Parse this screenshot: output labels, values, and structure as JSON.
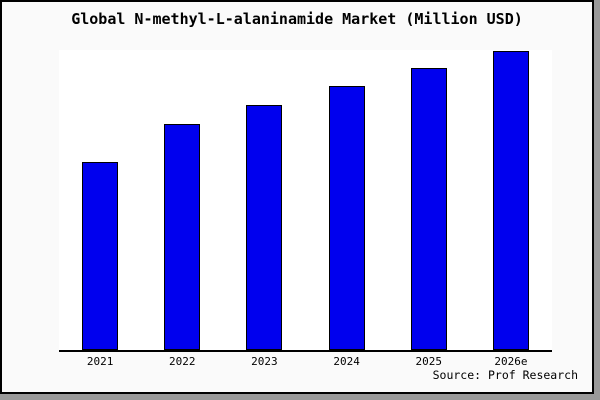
{
  "chart_data": {
    "type": "bar",
    "title": "Global N-methyl-L-alaninamide Market (Million USD)",
    "categories": [
      "2021",
      "2022",
      "2023",
      "2024",
      "2025",
      "2026e"
    ],
    "values": [
      63,
      75.7,
      82,
      88.3,
      94.3,
      100
    ],
    "value_note": "No y-axis ticks/labels are shown; values are relative bar heights with the tallest bar (2026e) = 100.",
    "ylim": [
      0,
      100.3
    ],
    "xlabel": "",
    "ylabel": "",
    "grid": false,
    "legend": false,
    "bar_color": "#0000EE",
    "bar_edge_color": "#000000"
  },
  "source_credit": "Source: Prof Research",
  "colors": {
    "figure_background": "#FAFAFA",
    "plot_background": "#FFFFFF",
    "frame_border": "#000000",
    "shadow": "#999999",
    "text": "#000000"
  }
}
